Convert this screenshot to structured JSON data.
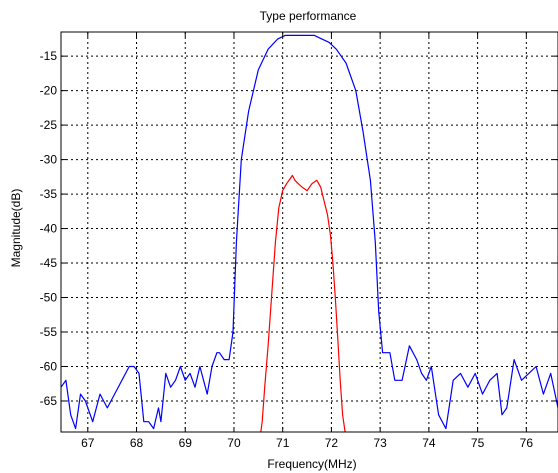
{
  "chart_data": {
    "type": "line",
    "title": "Type performance",
    "xlabel": "Frequency(MHz)",
    "ylabel": "Magnitude(dB)",
    "xlim": [
      66.45,
      76.65
    ],
    "ylim": [
      -69.5,
      -11.5
    ],
    "xticks": [
      67,
      68,
      69,
      70,
      71,
      72,
      73,
      74,
      75,
      76
    ],
    "yticks": [
      -15,
      -20,
      -25,
      -30,
      -35,
      -40,
      -45,
      -50,
      -55,
      -60,
      -65
    ],
    "grid": true,
    "grid_style": "dashed",
    "series": [
      {
        "color": "#0000ff",
        "x": [
          66.45,
          66.55,
          66.65,
          66.75,
          66.85,
          66.95,
          67.1,
          67.25,
          67.4,
          67.55,
          67.7,
          67.85,
          67.95,
          68.05,
          68.15,
          68.25,
          68.35,
          68.45,
          68.5,
          68.6,
          68.7,
          68.8,
          68.9,
          69.0,
          69.1,
          69.2,
          69.3,
          69.45,
          69.55,
          69.65,
          69.7,
          69.8,
          69.9,
          69.98,
          70.05,
          70.15,
          70.3,
          70.5,
          70.7,
          70.9,
          71.05,
          71.2,
          71.35,
          71.5,
          71.65,
          71.8,
          71.95,
          72.1,
          72.3,
          72.5,
          72.65,
          72.8,
          72.9,
          72.97,
          73.05,
          73.2,
          73.3,
          73.45,
          73.6,
          73.75,
          73.85,
          73.95,
          74.05,
          74.2,
          74.35,
          74.5,
          74.65,
          74.8,
          74.95,
          75.1,
          75.25,
          75.4,
          75.5,
          75.6,
          75.75,
          75.9,
          76.05,
          76.2,
          76.35,
          76.5,
          76.65
        ],
        "values": [
          -63,
          -62,
          -67,
          -69,
          -64,
          -65,
          -68,
          -64,
          -66,
          -64,
          -62,
          -60,
          -60,
          -61,
          -68,
          -68,
          -69,
          -66,
          -68,
          -61,
          -63,
          -62,
          -60,
          -62,
          -61,
          -63,
          -60,
          -64,
          -60,
          -58,
          -58,
          -59,
          -59,
          -55,
          -42,
          -30,
          -23,
          -17,
          -14,
          -12.5,
          -12,
          -12,
          -12,
          -12,
          -12,
          -12.5,
          -13,
          -14,
          -16,
          -20,
          -26,
          -33,
          -42,
          -52,
          -58,
          -58,
          -62,
          -62,
          -57,
          -59,
          -61,
          -62,
          -60,
          -67,
          -69,
          -62,
          -61,
          -63,
          -61,
          -64,
          -62,
          -61,
          -67,
          -66,
          -59,
          -62,
          -61,
          -60,
          -64,
          -61,
          -66
        ]
      },
      {
        "color": "#ff0000",
        "x": [
          70.55,
          70.58,
          70.63,
          70.7,
          70.78,
          70.85,
          70.92,
          71.0,
          71.08,
          71.15,
          71.2,
          71.25,
          71.32,
          71.4,
          71.5,
          71.6,
          71.7,
          71.78,
          71.85,
          71.92,
          71.98,
          72.03,
          72.08,
          72.13,
          72.18,
          72.23,
          72.28
        ],
        "values": [
          -69.5,
          -68,
          -63,
          -57,
          -49,
          -42,
          -37,
          -34.5,
          -33.5,
          -32.8,
          -32.3,
          -33,
          -33.5,
          -34,
          -34.5,
          -33.5,
          -33,
          -34,
          -36,
          -38,
          -41,
          -45,
          -50,
          -56,
          -62,
          -67,
          -69.5
        ]
      }
    ]
  }
}
